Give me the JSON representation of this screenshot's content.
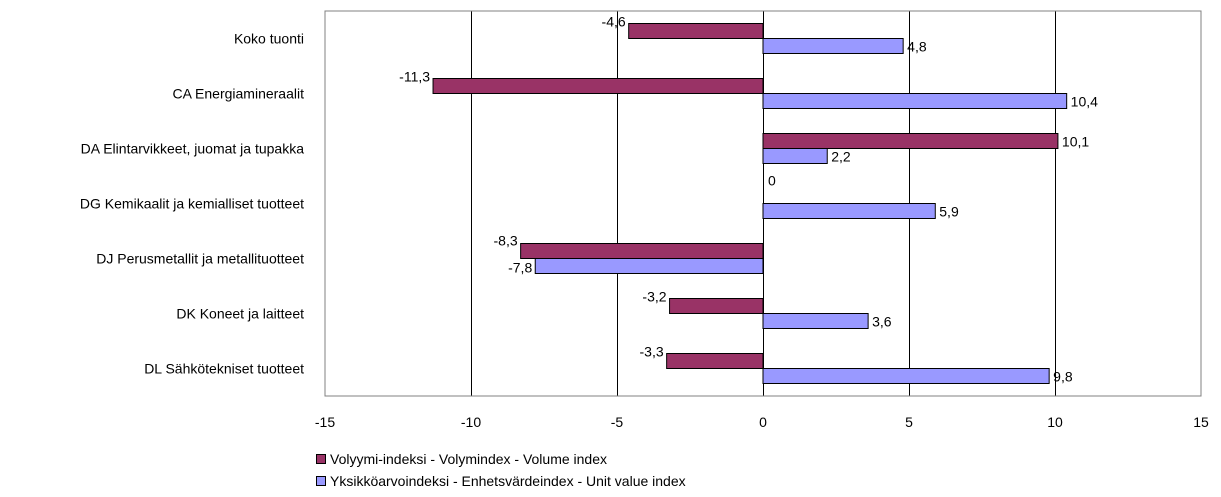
{
  "chart_data": {
    "type": "bar",
    "orientation": "horizontal",
    "categories": [
      "Koko tuonti",
      "CA Energiamineraalit",
      "DA Elintarvikkeet, juomat ja tupakka",
      "DG Kemikaalit ja kemialliset tuotteet",
      "DJ Perusmetallit ja metallituotteet",
      "DK Koneet ja laitteet",
      "DL Sähkötekniset tuotteet"
    ],
    "series": [
      {
        "name": "Volyymi-indeksi - Volymindex - Volume index",
        "color": "#993366",
        "values": [
          -4.6,
          -11.3,
          10.1,
          0,
          -8.3,
          -3.2,
          -3.3
        ],
        "labels": [
          "-4,6",
          "-11,3",
          "10,1",
          "0",
          "-8,3",
          "-3,2",
          "-3,3"
        ]
      },
      {
        "name": "Yksikköarvoindeksi - Enhetsvärdeindex - Unit value index",
        "color": "#9999ff",
        "values": [
          4.8,
          10.4,
          2.2,
          5.9,
          -7.8,
          3.6,
          9.8
        ],
        "labels": [
          "4,8",
          "10,4",
          "2,2",
          "5,9",
          "-7,8",
          "3,6",
          "9,8"
        ]
      }
    ],
    "xlim": [
      -15,
      15
    ],
    "xticks": [
      -15,
      -10,
      -5,
      0,
      5,
      10,
      15
    ],
    "xtick_labels": [
      "-15",
      "-10",
      "-5",
      "0",
      "5",
      "10",
      "15"
    ],
    "grid": "vertical",
    "legend_position": "bottom",
    "title": "",
    "xlabel": "",
    "ylabel": ""
  }
}
